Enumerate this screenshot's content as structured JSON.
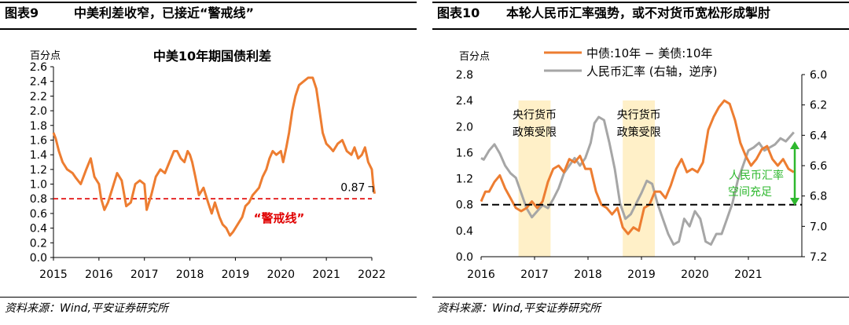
{
  "left": {
    "header_number": "图表9",
    "header_title": "中美利差收窄，已接近“警戒线”",
    "source": "资料来源：Wind,平安证券研究所",
    "chart_data": {
      "type": "line",
      "title": "中美10年期国债利差",
      "ylabel": "百分点",
      "ylim": [
        0,
        2.6
      ],
      "yticks": [
        "0.0",
        "0.2",
        "0.4",
        "0.6",
        "0.8",
        "1.0",
        "1.2",
        "1.4",
        "1.6",
        "1.8",
        "2.0",
        "2.2",
        "2.4",
        "2.6"
      ],
      "xlim": [
        2015,
        2022
      ],
      "xticks": [
        "2015",
        "2016",
        "2017",
        "2018",
        "2019",
        "2020",
        "2021",
        "2022"
      ],
      "series": [
        {
          "name": "中美10年期国债利差",
          "color": "#ED7D31",
          "x": [
            2015.0,
            2015.05,
            2015.12,
            2015.2,
            2015.3,
            2015.42,
            2015.5,
            2015.6,
            2015.72,
            2015.82,
            2015.9,
            2016.0,
            2016.05,
            2016.12,
            2016.2,
            2016.3,
            2016.4,
            2016.5,
            2016.6,
            2016.7,
            2016.8,
            2016.9,
            2017.0,
            2017.05,
            2017.15,
            2017.25,
            2017.35,
            2017.45,
            2017.55,
            2017.65,
            2017.72,
            2017.8,
            2017.88,
            2017.95,
            2018.0,
            2018.05,
            2018.12,
            2018.2,
            2018.3,
            2018.4,
            2018.48,
            2018.55,
            2018.65,
            2018.72,
            2018.8,
            2018.88,
            2018.95,
            2019.05,
            2019.15,
            2019.22,
            2019.3,
            2019.38,
            2019.45,
            2019.52,
            2019.6,
            2019.68,
            2019.75,
            2019.82,
            2019.9,
            2020.0,
            2020.05,
            2020.12,
            2020.18,
            2020.25,
            2020.32,
            2020.4,
            2020.5,
            2020.6,
            2020.7,
            2020.78,
            2020.85,
            2020.92,
            2021.0,
            2021.08,
            2021.15,
            2021.25,
            2021.35,
            2021.45,
            2021.55,
            2021.62,
            2021.7,
            2021.78,
            2021.85,
            2021.92,
            2022.0,
            2022.03,
            2022.06
          ],
          "values": [
            1.7,
            1.62,
            1.45,
            1.3,
            1.2,
            1.15,
            1.08,
            1.0,
            1.2,
            1.35,
            1.1,
            1.0,
            0.8,
            0.65,
            0.75,
            0.95,
            1.15,
            1.05,
            0.7,
            0.75,
            1.0,
            1.05,
            1.0,
            0.65,
            0.85,
            1.1,
            1.2,
            1.15,
            1.3,
            1.45,
            1.45,
            1.35,
            1.3,
            1.45,
            1.4,
            1.3,
            1.1,
            0.85,
            0.95,
            0.75,
            0.6,
            0.75,
            0.55,
            0.45,
            0.4,
            0.3,
            0.35,
            0.45,
            0.55,
            0.7,
            0.75,
            0.85,
            0.9,
            0.95,
            1.1,
            1.2,
            1.35,
            1.45,
            1.4,
            1.45,
            1.3,
            1.5,
            1.7,
            2.0,
            2.2,
            2.35,
            2.4,
            2.45,
            2.45,
            2.3,
            2.0,
            1.7,
            1.55,
            1.5,
            1.45,
            1.55,
            1.6,
            1.45,
            1.4,
            1.5,
            1.35,
            1.4,
            1.5,
            1.3,
            1.2,
            1.0,
            0.87
          ]
        }
      ],
      "threshold": {
        "value": 0.8,
        "color": "#E00000",
        "label": "“警戒线”"
      },
      "last_label": "0.87"
    }
  },
  "right": {
    "header_number": "图表10",
    "header_title": "本轮人民币汇率强势，或不对货币宽松形成掣肘",
    "source": "资料来源：Wind,平安证券研究所",
    "chart_data": {
      "type": "line",
      "ylabel": "百分点",
      "ylim": [
        0,
        2.8
      ],
      "yticks": [
        "0.0",
        "0.4",
        "0.8",
        "1.2",
        "1.6",
        "2.0",
        "2.4",
        "2.8"
      ],
      "y2lim": [
        6.0,
        7.2
      ],
      "y2_inverted": true,
      "y2ticks": [
        "6.0",
        "6.2",
        "6.4",
        "6.6",
        "6.8",
        "7.0",
        "7.2"
      ],
      "xlim": [
        2016,
        2022
      ],
      "xticks": [
        "2016",
        "2017",
        "2018",
        "2019",
        "2020",
        "2021"
      ],
      "legend": [
        "中债:10年 − 美债:10年",
        "人民币汇率 (右轴，逆序)"
      ],
      "series": [
        {
          "name": "中债:10年 − 美债:10年",
          "axis": "left",
          "color": "#ED7D31",
          "x": [
            2016.0,
            2016.08,
            2016.15,
            2016.25,
            2016.35,
            2016.45,
            2016.55,
            2016.65,
            2016.75,
            2016.85,
            2016.95,
            2017.05,
            2017.15,
            2017.25,
            2017.35,
            2017.45,
            2017.55,
            2017.65,
            2017.75,
            2017.85,
            2017.95,
            2018.05,
            2018.15,
            2018.25,
            2018.35,
            2018.45,
            2018.55,
            2018.65,
            2018.75,
            2018.85,
            2018.95,
            2019.05,
            2019.15,
            2019.25,
            2019.35,
            2019.45,
            2019.55,
            2019.65,
            2019.75,
            2019.85,
            2019.95,
            2020.05,
            2020.15,
            2020.25,
            2020.35,
            2020.45,
            2020.55,
            2020.65,
            2020.75,
            2020.85,
            2020.95,
            2021.05,
            2021.15,
            2021.25,
            2021.35,
            2021.45,
            2021.55,
            2021.65,
            2021.75,
            2021.85
          ],
          "values": [
            0.85,
            1.0,
            1.0,
            1.15,
            1.25,
            1.05,
            0.9,
            0.75,
            0.7,
            0.75,
            0.85,
            0.75,
            0.85,
            1.15,
            1.35,
            1.4,
            1.3,
            1.5,
            1.45,
            1.55,
            1.35,
            1.35,
            1.0,
            0.8,
            0.75,
            0.65,
            0.75,
            0.45,
            0.35,
            0.45,
            0.4,
            0.75,
            0.8,
            1.0,
            1.0,
            0.9,
            1.1,
            1.35,
            1.5,
            1.3,
            1.35,
            1.3,
            1.45,
            1.95,
            2.15,
            2.3,
            2.4,
            2.35,
            2.1,
            1.75,
            1.55,
            1.4,
            1.5,
            1.65,
            1.7,
            1.5,
            1.4,
            1.5,
            1.35,
            1.3
          ]
        },
        {
          "name": "人民币汇率 (右轴，逆序)",
          "axis": "right",
          "color": "#A6A6A6",
          "x": [
            2016.0,
            2016.05,
            2016.15,
            2016.25,
            2016.35,
            2016.45,
            2016.55,
            2016.65,
            2016.75,
            2016.85,
            2016.95,
            2017.05,
            2017.15,
            2017.25,
            2017.35,
            2017.45,
            2017.55,
            2017.65,
            2017.75,
            2017.85,
            2017.95,
            2018.05,
            2018.12,
            2018.2,
            2018.3,
            2018.4,
            2018.5,
            2018.6,
            2018.7,
            2018.8,
            2018.9,
            2019.0,
            2019.1,
            2019.2,
            2019.3,
            2019.4,
            2019.5,
            2019.6,
            2019.7,
            2019.8,
            2019.9,
            2020.0,
            2020.1,
            2020.2,
            2020.3,
            2020.4,
            2020.5,
            2020.6,
            2020.7,
            2020.8,
            2020.9,
            2021.0,
            2021.1,
            2021.2,
            2021.3,
            2021.4,
            2021.5,
            2021.6,
            2021.7,
            2021.85
          ],
          "values": [
            6.55,
            6.56,
            6.5,
            6.46,
            6.52,
            6.6,
            6.65,
            6.68,
            6.78,
            6.88,
            6.94,
            6.9,
            6.86,
            6.88,
            6.82,
            6.75,
            6.65,
            6.6,
            6.55,
            6.6,
            6.55,
            6.45,
            6.32,
            6.28,
            6.3,
            6.45,
            6.62,
            6.85,
            6.95,
            6.92,
            6.85,
            6.78,
            6.7,
            6.72,
            6.85,
            6.95,
            7.05,
            7.12,
            7.1,
            6.95,
            7.0,
            6.9,
            6.95,
            7.1,
            7.12,
            7.05,
            7.05,
            6.95,
            6.85,
            6.7,
            6.6,
            6.5,
            6.48,
            6.45,
            6.5,
            6.48,
            6.46,
            6.42,
            6.44,
            6.38
          ]
        }
      ],
      "threshold": {
        "value": 0.8,
        "color": "#000000",
        "style": "dashed"
      },
      "shaded_regions": [
        {
          "x_start": 2016.7,
          "x_end": 2017.3,
          "label_line1": "央行货币",
          "label_line2": "政策受限",
          "color": "#FFF0C8"
        },
        {
          "x_start": 2018.65,
          "x_end": 2019.25,
          "label_line1": "央行货币",
          "label_line2": "政策受限",
          "color": "#FFF0C8"
        }
      ],
      "annotation": {
        "line1": "人民币汇率",
        "line2": "空间充足",
        "color": "#2EB82E"
      }
    }
  }
}
